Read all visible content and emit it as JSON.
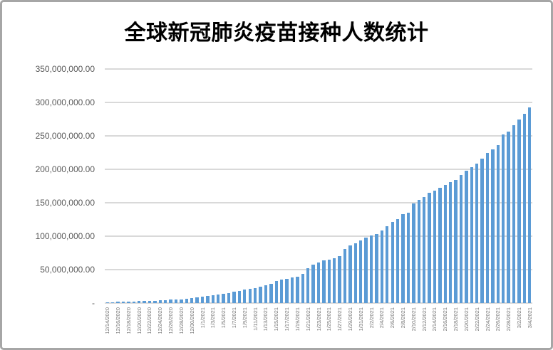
{
  "chart_data": {
    "type": "bar",
    "title": "全球新冠肺炎疫苗接种人数统计",
    "xlabel": "",
    "ylabel": "",
    "ylim": [
      0,
      350000000
    ],
    "ytick_interval": 50000000,
    "ytick_labels": [
      "-",
      "50,000,000.00",
      "100,000,000.00",
      "150,000,000.00",
      "200,000,000.00",
      "250,000,000.00",
      "300,000,000.00",
      "350,000,000.00"
    ],
    "xtick_label_step": 2,
    "grid": true,
    "legend": "none",
    "categories": [
      "12/14/2020",
      "12/15/2020",
      "12/16/2020",
      "12/17/2020",
      "12/18/2020",
      "12/19/2020",
      "12/20/2020",
      "12/21/2020",
      "12/22/2020",
      "12/23/2020",
      "12/24/2020",
      "12/25/2020",
      "12/26/2020",
      "12/27/2020",
      "12/28/2020",
      "12/29/2020",
      "12/30/2020",
      "12/31/2020",
      "1/1/2021",
      "1/2/2021",
      "1/3/2021",
      "1/4/2021",
      "1/5/2021",
      "1/6/2021",
      "1/7/2021",
      "1/8/2021",
      "1/9/2021",
      "1/10/2021",
      "1/11/2021",
      "1/12/2021",
      "1/13/2021",
      "1/14/2021",
      "1/15/2021",
      "1/16/2021",
      "1/17/2021",
      "1/18/2021",
      "1/19/2021",
      "1/20/2021",
      "1/21/2021",
      "1/22/2021",
      "1/23/2021",
      "1/24/2021",
      "1/25/2021",
      "1/26/2021",
      "1/27/2021",
      "1/28/2021",
      "1/29/2021",
      "1/30/2021",
      "1/31/2021",
      "2/1/2021",
      "2/2/2021",
      "2/3/2021",
      "2/4/2021",
      "2/5/2021",
      "2/6/2021",
      "2/7/2021",
      "2/8/2021",
      "2/9/2021",
      "2/10/2021",
      "2/11/2021",
      "2/12/2021",
      "2/13/2021",
      "2/14/2021",
      "2/15/2021",
      "2/16/2021",
      "2/17/2021",
      "2/18/2021",
      "2/19/2021",
      "2/20/2021",
      "2/21/2021",
      "2/22/2021",
      "2/23/2021",
      "2/24/2021",
      "2/25/2021",
      "2/26/2021",
      "2/27/2021",
      "2/28/2021",
      "3/1/2021",
      "3/2/2021",
      "3/3/2021",
      "3/4/2021"
    ],
    "values": [
      1000000,
      1300000,
      1600000,
      1900000,
      2200000,
      2400000,
      2700000,
      3000000,
      3300000,
      3700000,
      4100000,
      4400000,
      4800000,
      5200000,
      5700000,
      6400000,
      7300000,
      8500000,
      9600000,
      10600000,
      12000000,
      13100000,
      14200000,
      15300000,
      16700000,
      18100000,
      19900000,
      21000000,
      22700000,
      24000000,
      26300000,
      28700000,
      33300000,
      35100000,
      36200000,
      38000000,
      39400000,
      44000000,
      52000000,
      57400000,
      60600000,
      63500000,
      64600000,
      67000000,
      69900000,
      81200000,
      86500000,
      89000000,
      93600000,
      98200000,
      101400000,
      103200000,
      108500000,
      114900000,
      121000000,
      125600000,
      132700000,
      135100000,
      148600000,
      153900000,
      158200000,
      164600000,
      168100000,
      172400000,
      176300000,
      180500000,
      184100000,
      191200000,
      197600000,
      203600000,
      208900000,
      216000000,
      224500000,
      230000000,
      236000000,
      252500000,
      256000000,
      266400000,
      274200000,
      283000000,
      292500000
    ]
  },
  "colors": {
    "bar": "#5B9BD5",
    "gridline": "#D9D9D9",
    "axis_line": "#D9D9D9",
    "axis_label_text": "#595959",
    "category_label_text": "#757575",
    "title_text": "#000000",
    "border": "#A6A6A6",
    "background": "#FFFFFF"
  }
}
